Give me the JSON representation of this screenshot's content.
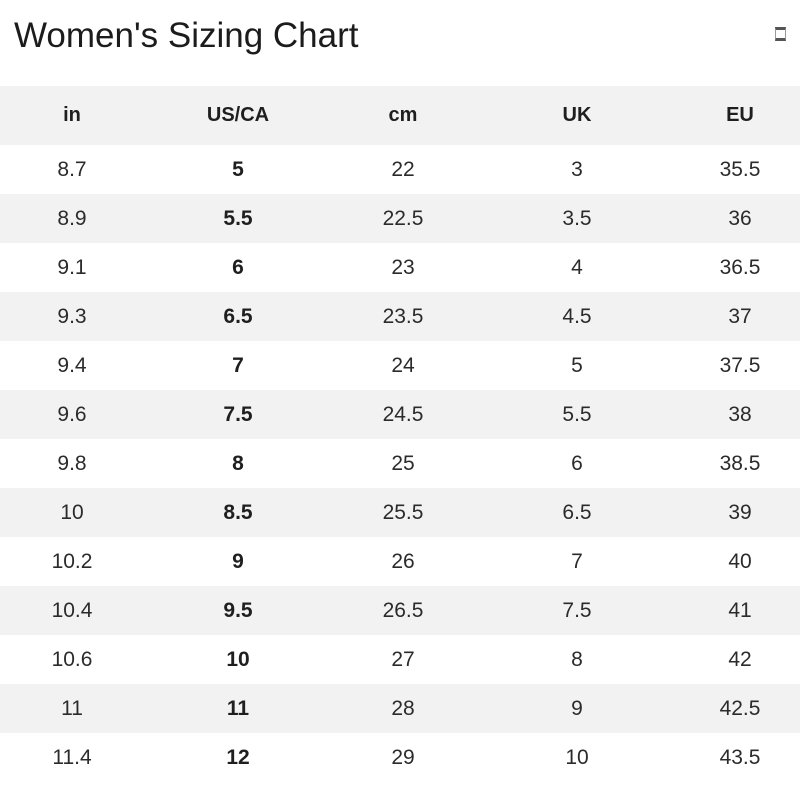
{
  "page": {
    "title": "Women's Sizing Chart",
    "corner_icon": "missing-glyph-box"
  },
  "colors": {
    "stripe_bg": "#f2f2f2",
    "header_bg": "#f2f2f2",
    "text": "#2b2b2b",
    "title": "#1c1c1c"
  },
  "table": {
    "columns": [
      "in",
      "US/CA",
      "cm",
      "UK",
      "EU"
    ],
    "column_keys": [
      "in",
      "usca",
      "cm",
      "uk",
      "eu"
    ],
    "bold_column_index": 1,
    "rows": [
      [
        "8.7",
        "5",
        "22",
        "3",
        "35.5"
      ],
      [
        "8.9",
        "5.5",
        "22.5",
        "3.5",
        "36"
      ],
      [
        "9.1",
        "6",
        "23",
        "4",
        "36.5"
      ],
      [
        "9.3",
        "6.5",
        "23.5",
        "4.5",
        "37"
      ],
      [
        "9.4",
        "7",
        "24",
        "5",
        "37.5"
      ],
      [
        "9.6",
        "7.5",
        "24.5",
        "5.5",
        "38"
      ],
      [
        "9.8",
        "8",
        "25",
        "6",
        "38.5"
      ],
      [
        "10",
        "8.5",
        "25.5",
        "6.5",
        "39"
      ],
      [
        "10.2",
        "9",
        "26",
        "7",
        "40"
      ],
      [
        "10.4",
        "9.5",
        "26.5",
        "7.5",
        "41"
      ],
      [
        "10.6",
        "10",
        "27",
        "8",
        "42"
      ],
      [
        "11",
        "11",
        "28",
        "9",
        "42.5"
      ],
      [
        "11.4",
        "12",
        "29",
        "10",
        "43.5"
      ]
    ]
  }
}
